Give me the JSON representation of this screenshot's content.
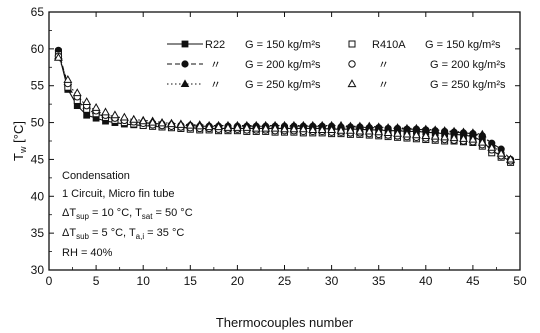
{
  "chart_data": {
    "type": "line",
    "title": "",
    "xlabel": "Thermocouples number",
    "ylabel": "T",
    "ylabel_sub": "w",
    "ylabel_unit": " [°C]",
    "xlim": [
      0,
      50
    ],
    "ylim": [
      30,
      65
    ],
    "xticks": [
      0,
      5,
      10,
      15,
      20,
      25,
      30,
      35,
      40,
      45,
      50
    ],
    "yticks": [
      30,
      35,
      40,
      45,
      50,
      55,
      60,
      65
    ],
    "grid": false,
    "legend_position": "top-right",
    "legend": {
      "r22_label": "R22",
      "r410a_label": "R410A",
      "ditto": "〃",
      "g150": "G = 150 kg/m²s",
      "g200": "G = 200 kg/m²s",
      "g250": "G = 250 kg/m²s"
    },
    "annotations": {
      "line1": "Condensation",
      "line2": "1 Circuit, Micro fin tube",
      "line3_a": "ΔT",
      "line3_sub1": "sup",
      "line3_b": " = 10 °C, T",
      "line3_sub2": "sat",
      "line3_c": " = 50 °C",
      "line4_a": "ΔT",
      "line4_sub1": "sub",
      "line4_b": " = 5 °C, T",
      "line4_sub2": "a,i",
      "line4_c": " = 35 °C",
      "line5": "RH = 40%"
    },
    "x": [
      1,
      2,
      3,
      4,
      5,
      6,
      7,
      8,
      9,
      10,
      11,
      12,
      13,
      14,
      15,
      16,
      17,
      18,
      19,
      20,
      21,
      22,
      23,
      24,
      25,
      26,
      27,
      28,
      29,
      30,
      31,
      32,
      33,
      34,
      35,
      36,
      37,
      38,
      39,
      40,
      41,
      42,
      43,
      44,
      45,
      46,
      47,
      48,
      49
    ],
    "series": [
      {
        "name": "R22 G = 150 kg/m²s",
        "refrigerant": "R22",
        "marker": "square",
        "filled": true,
        "line": "solid",
        "values": [
          59.6,
          54.5,
          52.3,
          51.0,
          50.6,
          50.2,
          50.0,
          49.8,
          49.7,
          49.6,
          49.5,
          49.4,
          49.4,
          49.3,
          49.3,
          49.2,
          49.2,
          49.2,
          49.2,
          49.2,
          49.2,
          49.2,
          49.2,
          49.2,
          49.2,
          49.2,
          49.2,
          49.2,
          49.2,
          49.1,
          49.1,
          49.1,
          49.1,
          49.0,
          49.0,
          48.9,
          48.9,
          48.8,
          48.8,
          48.7,
          48.6,
          48.5,
          48.4,
          48.3,
          48.1,
          47.5,
          46.2,
          45.5,
          44.7
        ]
      },
      {
        "name": "R22 G = 200 kg/m²s",
        "refrigerant": "R22",
        "marker": "circle",
        "filled": true,
        "line": "dash",
        "values": [
          59.8,
          55.0,
          53.0,
          51.8,
          51.2,
          50.8,
          50.5,
          50.3,
          50.1,
          50.0,
          49.9,
          49.8,
          49.7,
          49.6,
          49.6,
          49.5,
          49.5,
          49.5,
          49.5,
          49.5,
          49.5,
          49.5,
          49.5,
          49.5,
          49.5,
          49.5,
          49.5,
          49.5,
          49.5,
          49.5,
          49.4,
          49.4,
          49.4,
          49.3,
          49.3,
          49.2,
          49.2,
          49.1,
          49.1,
          49.0,
          48.9,
          48.8,
          48.7,
          48.6,
          48.5,
          48.2,
          47.2,
          46.4,
          45.0
        ]
      },
      {
        "name": "R22 G = 250 kg/m²s",
        "refrigerant": "R22",
        "marker": "triangle",
        "filled": true,
        "line": "dot",
        "values": [
          59.0,
          55.5,
          53.5,
          52.3,
          51.6,
          51.1,
          50.8,
          50.6,
          50.4,
          50.3,
          50.2,
          50.0,
          49.9,
          49.8,
          49.7,
          49.7,
          49.6,
          49.6,
          49.6,
          49.6,
          49.6,
          49.6,
          49.6,
          49.6,
          49.6,
          49.6,
          49.6,
          49.6,
          49.6,
          49.6,
          49.6,
          49.5,
          49.5,
          49.5,
          49.4,
          49.3,
          49.3,
          49.2,
          49.2,
          49.1,
          49.0,
          48.9,
          48.8,
          48.7,
          48.6,
          48.4,
          47.0,
          45.8,
          44.9
        ]
      },
      {
        "name": "R410A G = 150 kg/m²s",
        "refrigerant": "R410A",
        "marker": "square",
        "filled": false,
        "line": "none",
        "values": [
          59.2,
          54.8,
          53.0,
          51.8,
          51.2,
          50.7,
          50.3,
          50.0,
          49.8,
          49.6,
          49.5,
          49.4,
          49.3,
          49.2,
          49.1,
          49.0,
          49.0,
          48.9,
          48.9,
          48.9,
          48.8,
          48.8,
          48.8,
          48.7,
          48.7,
          48.7,
          48.6,
          48.6,
          48.6,
          48.5,
          48.5,
          48.4,
          48.4,
          48.3,
          48.2,
          48.1,
          48.0,
          47.9,
          47.8,
          47.7,
          47.6,
          47.5,
          47.5,
          47.4,
          47.3,
          46.8,
          45.9,
          45.3,
          44.6
        ]
      },
      {
        "name": "R410A G = 200 kg/m²s",
        "refrigerant": "R410A",
        "marker": "circle",
        "filled": false,
        "line": "none",
        "values": [
          59.0,
          55.3,
          53.5,
          52.3,
          51.6,
          51.0,
          50.6,
          50.3,
          50.1,
          49.9,
          49.7,
          49.6,
          49.5,
          49.4,
          49.3,
          49.2,
          49.2,
          49.1,
          49.1,
          49.1,
          49.0,
          49.0,
          49.0,
          48.9,
          48.9,
          48.9,
          48.8,
          48.8,
          48.8,
          48.7,
          48.7,
          48.6,
          48.6,
          48.5,
          48.4,
          48.3,
          48.2,
          48.1,
          48.0,
          47.9,
          47.8,
          47.7,
          47.6,
          47.5,
          47.4,
          47.0,
          46.3,
          45.5,
          44.8
        ]
      },
      {
        "name": "R410A G = 250 kg/m²s",
        "refrigerant": "R410A",
        "marker": "triangle",
        "filled": false,
        "line": "none",
        "values": [
          58.8,
          55.8,
          54.0,
          52.8,
          52.0,
          51.4,
          51.0,
          50.7,
          50.4,
          50.2,
          50.0,
          49.9,
          49.8,
          49.7,
          49.6,
          49.5,
          49.4,
          49.4,
          49.3,
          49.3,
          49.3,
          49.2,
          49.2,
          49.2,
          49.1,
          49.1,
          49.1,
          49.0,
          49.0,
          49.0,
          48.9,
          48.9,
          48.8,
          48.8,
          48.7,
          48.6,
          48.5,
          48.4,
          48.3,
          48.2,
          48.1,
          48.0,
          47.9,
          47.8,
          47.7,
          47.3,
          46.6,
          45.8,
          45.0
        ]
      }
    ]
  }
}
